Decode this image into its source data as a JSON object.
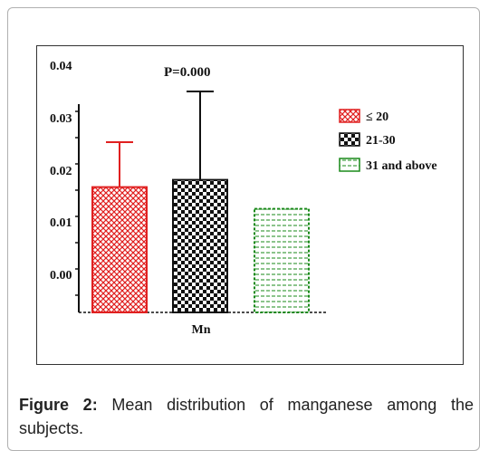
{
  "chart_data": {
    "type": "bar",
    "annotation": "P=0.000",
    "xlabel": "Mn",
    "categories": [
      "Mn"
    ],
    "y_ticks": [
      "0.04",
      "0.03",
      "0.02",
      "0.01",
      "0.00"
    ],
    "series": [
      {
        "name": "≤ 20",
        "value": 0.0173,
        "error_upper": 0.0235,
        "color": "#e02020",
        "pattern": "crosshatch"
      },
      {
        "name": "21-30",
        "value": 0.0183,
        "error_upper": 0.0305,
        "color": "#111111",
        "pattern": "checker"
      },
      {
        "name": "31 and above",
        "value": 0.0143,
        "error_upper": null,
        "color": "#1a8a1a",
        "pattern": "lines"
      }
    ],
    "legend_position": "right"
  },
  "caption": {
    "label": "Figure 2:",
    "text": " Mean distribution of manganese among the subjects."
  }
}
